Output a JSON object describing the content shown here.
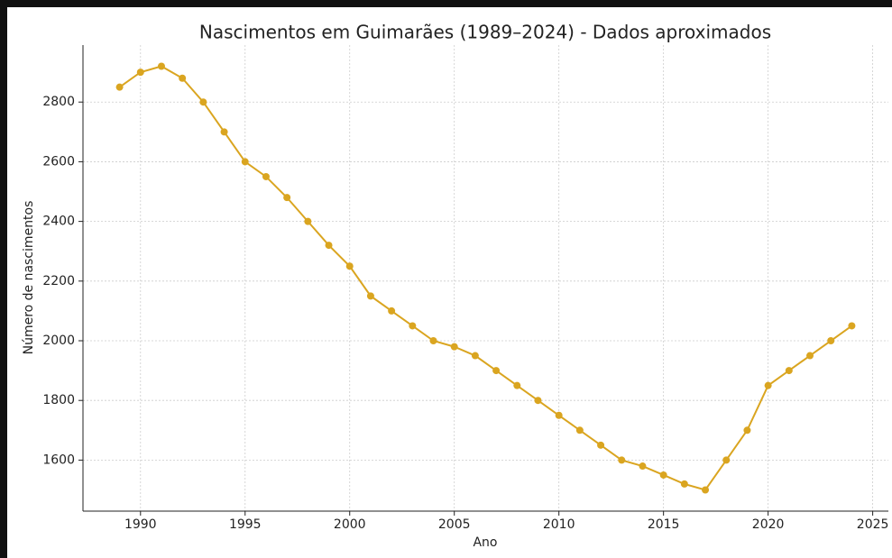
{
  "chart_data": {
    "type": "line",
    "title": "Nascimentos em Guimarães (1989–2024) - Dados aproximados",
    "xlabel": "Ano",
    "ylabel": "Número de nascimentos",
    "x": [
      1989,
      1990,
      1991,
      1992,
      1993,
      1994,
      1995,
      1996,
      1997,
      1998,
      1999,
      2000,
      2001,
      2002,
      2003,
      2004,
      2005,
      2006,
      2007,
      2008,
      2009,
      2010,
      2011,
      2012,
      2013,
      2014,
      2015,
      2016,
      2017,
      2018,
      2019,
      2020,
      2021,
      2022,
      2023,
      2024
    ],
    "values": [
      2850,
      2900,
      2920,
      2880,
      2800,
      2700,
      2600,
      2550,
      2480,
      2400,
      2320,
      2250,
      2150,
      2100,
      2050,
      2000,
      1980,
      1950,
      1900,
      1850,
      1800,
      1750,
      1700,
      1650,
      1600,
      1580,
      1550,
      1520,
      1500,
      1600,
      1700,
      1850,
      1900,
      1950,
      2000,
      2050
    ],
    "color": "#daa520",
    "xlim": [
      1987.25,
      2025.75
    ],
    "xticks": [
      1990,
      1995,
      2000,
      2005,
      2010,
      2015,
      2020,
      2025
    ],
    "ylim": [
      1429,
      2991
    ],
    "yticks": [
      1600,
      1800,
      2000,
      2200,
      2400,
      2600,
      2800
    ],
    "grid": true
  }
}
